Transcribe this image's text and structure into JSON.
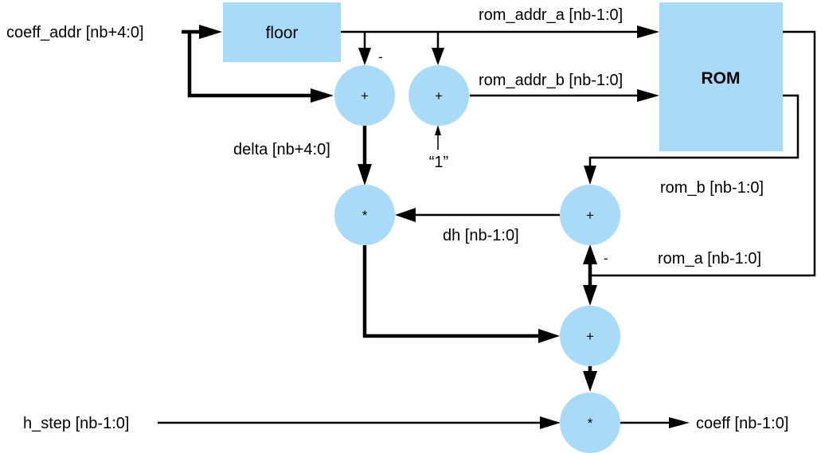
{
  "blocks": {
    "floor": "floor",
    "rom": "ROM"
  },
  "operators": {
    "add_delta": "+",
    "add_one": "+",
    "mul_delta": "*",
    "add_dh": "+",
    "add_final": "+",
    "mul_step": "*"
  },
  "signals": {
    "coeff_addr": "coeff_addr [nb+4:0]",
    "rom_addr_a": "rom_addr_a [nb-1:0]",
    "rom_addr_b": "rom_addr_b [nb-1:0]",
    "delta": "delta [nb+4:0]",
    "const_one": "“1”",
    "rom_b": "rom_b [nb-1:0]",
    "dh": "dh [nb-1:0]",
    "rom_a": "rom_a  [nb-1:0]",
    "h_step": "h_step [nb-1:0]",
    "coeff": "coeff [nb-1:0]"
  },
  "signs": {
    "minus_delta": "-",
    "minus_dh": "-"
  }
}
